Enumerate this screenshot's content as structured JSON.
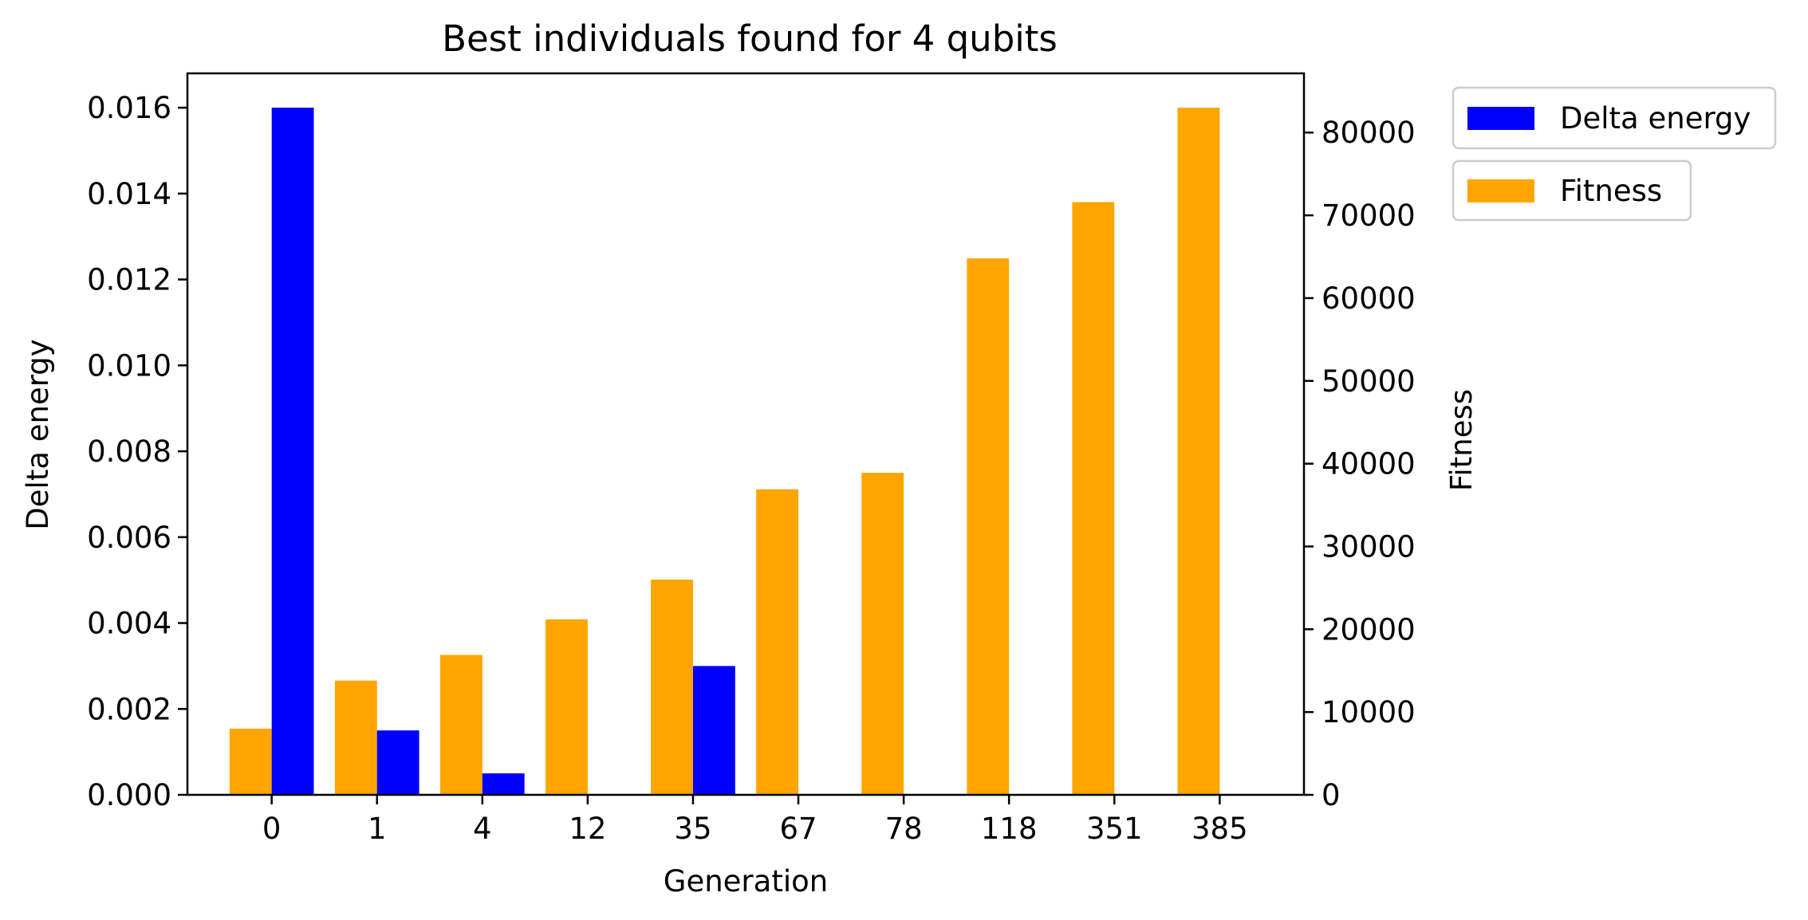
{
  "chart_data": {
    "type": "bar",
    "title": "Best individuals found for 4 qubits",
    "xlabel": "Generation",
    "ylabel_left": "Delta energy",
    "ylabel_right": "Fitness",
    "categories": [
      "0",
      "1",
      "4",
      "12",
      "35",
      "67",
      "78",
      "118",
      "351",
      "385"
    ],
    "series": [
      {
        "name": "Delta energy",
        "axis": "left",
        "color": "#0000ff",
        "values": [
          0.016,
          0.0015,
          0.0005,
          0.0,
          0.003,
          0.0,
          0.0,
          0.0,
          0.0,
          0.0
        ]
      },
      {
        "name": "Fitness",
        "axis": "right",
        "color": "#ffa500",
        "values": [
          8000,
          13800,
          16900,
          21200,
          26000,
          36900,
          38900,
          64800,
          71600,
          83000
        ]
      }
    ],
    "ylim_left": [
      0,
      0.0168
    ],
    "ylim_right": [
      0,
      87150
    ],
    "yticks_left": [
      "0.000",
      "0.002",
      "0.004",
      "0.006",
      "0.008",
      "0.010",
      "0.012",
      "0.014",
      "0.016"
    ],
    "yticks_right": [
      "0",
      "10000",
      "20000",
      "30000",
      "40000",
      "50000",
      "60000",
      "70000",
      "80000"
    ],
    "legend_position": "outside-top-right"
  }
}
